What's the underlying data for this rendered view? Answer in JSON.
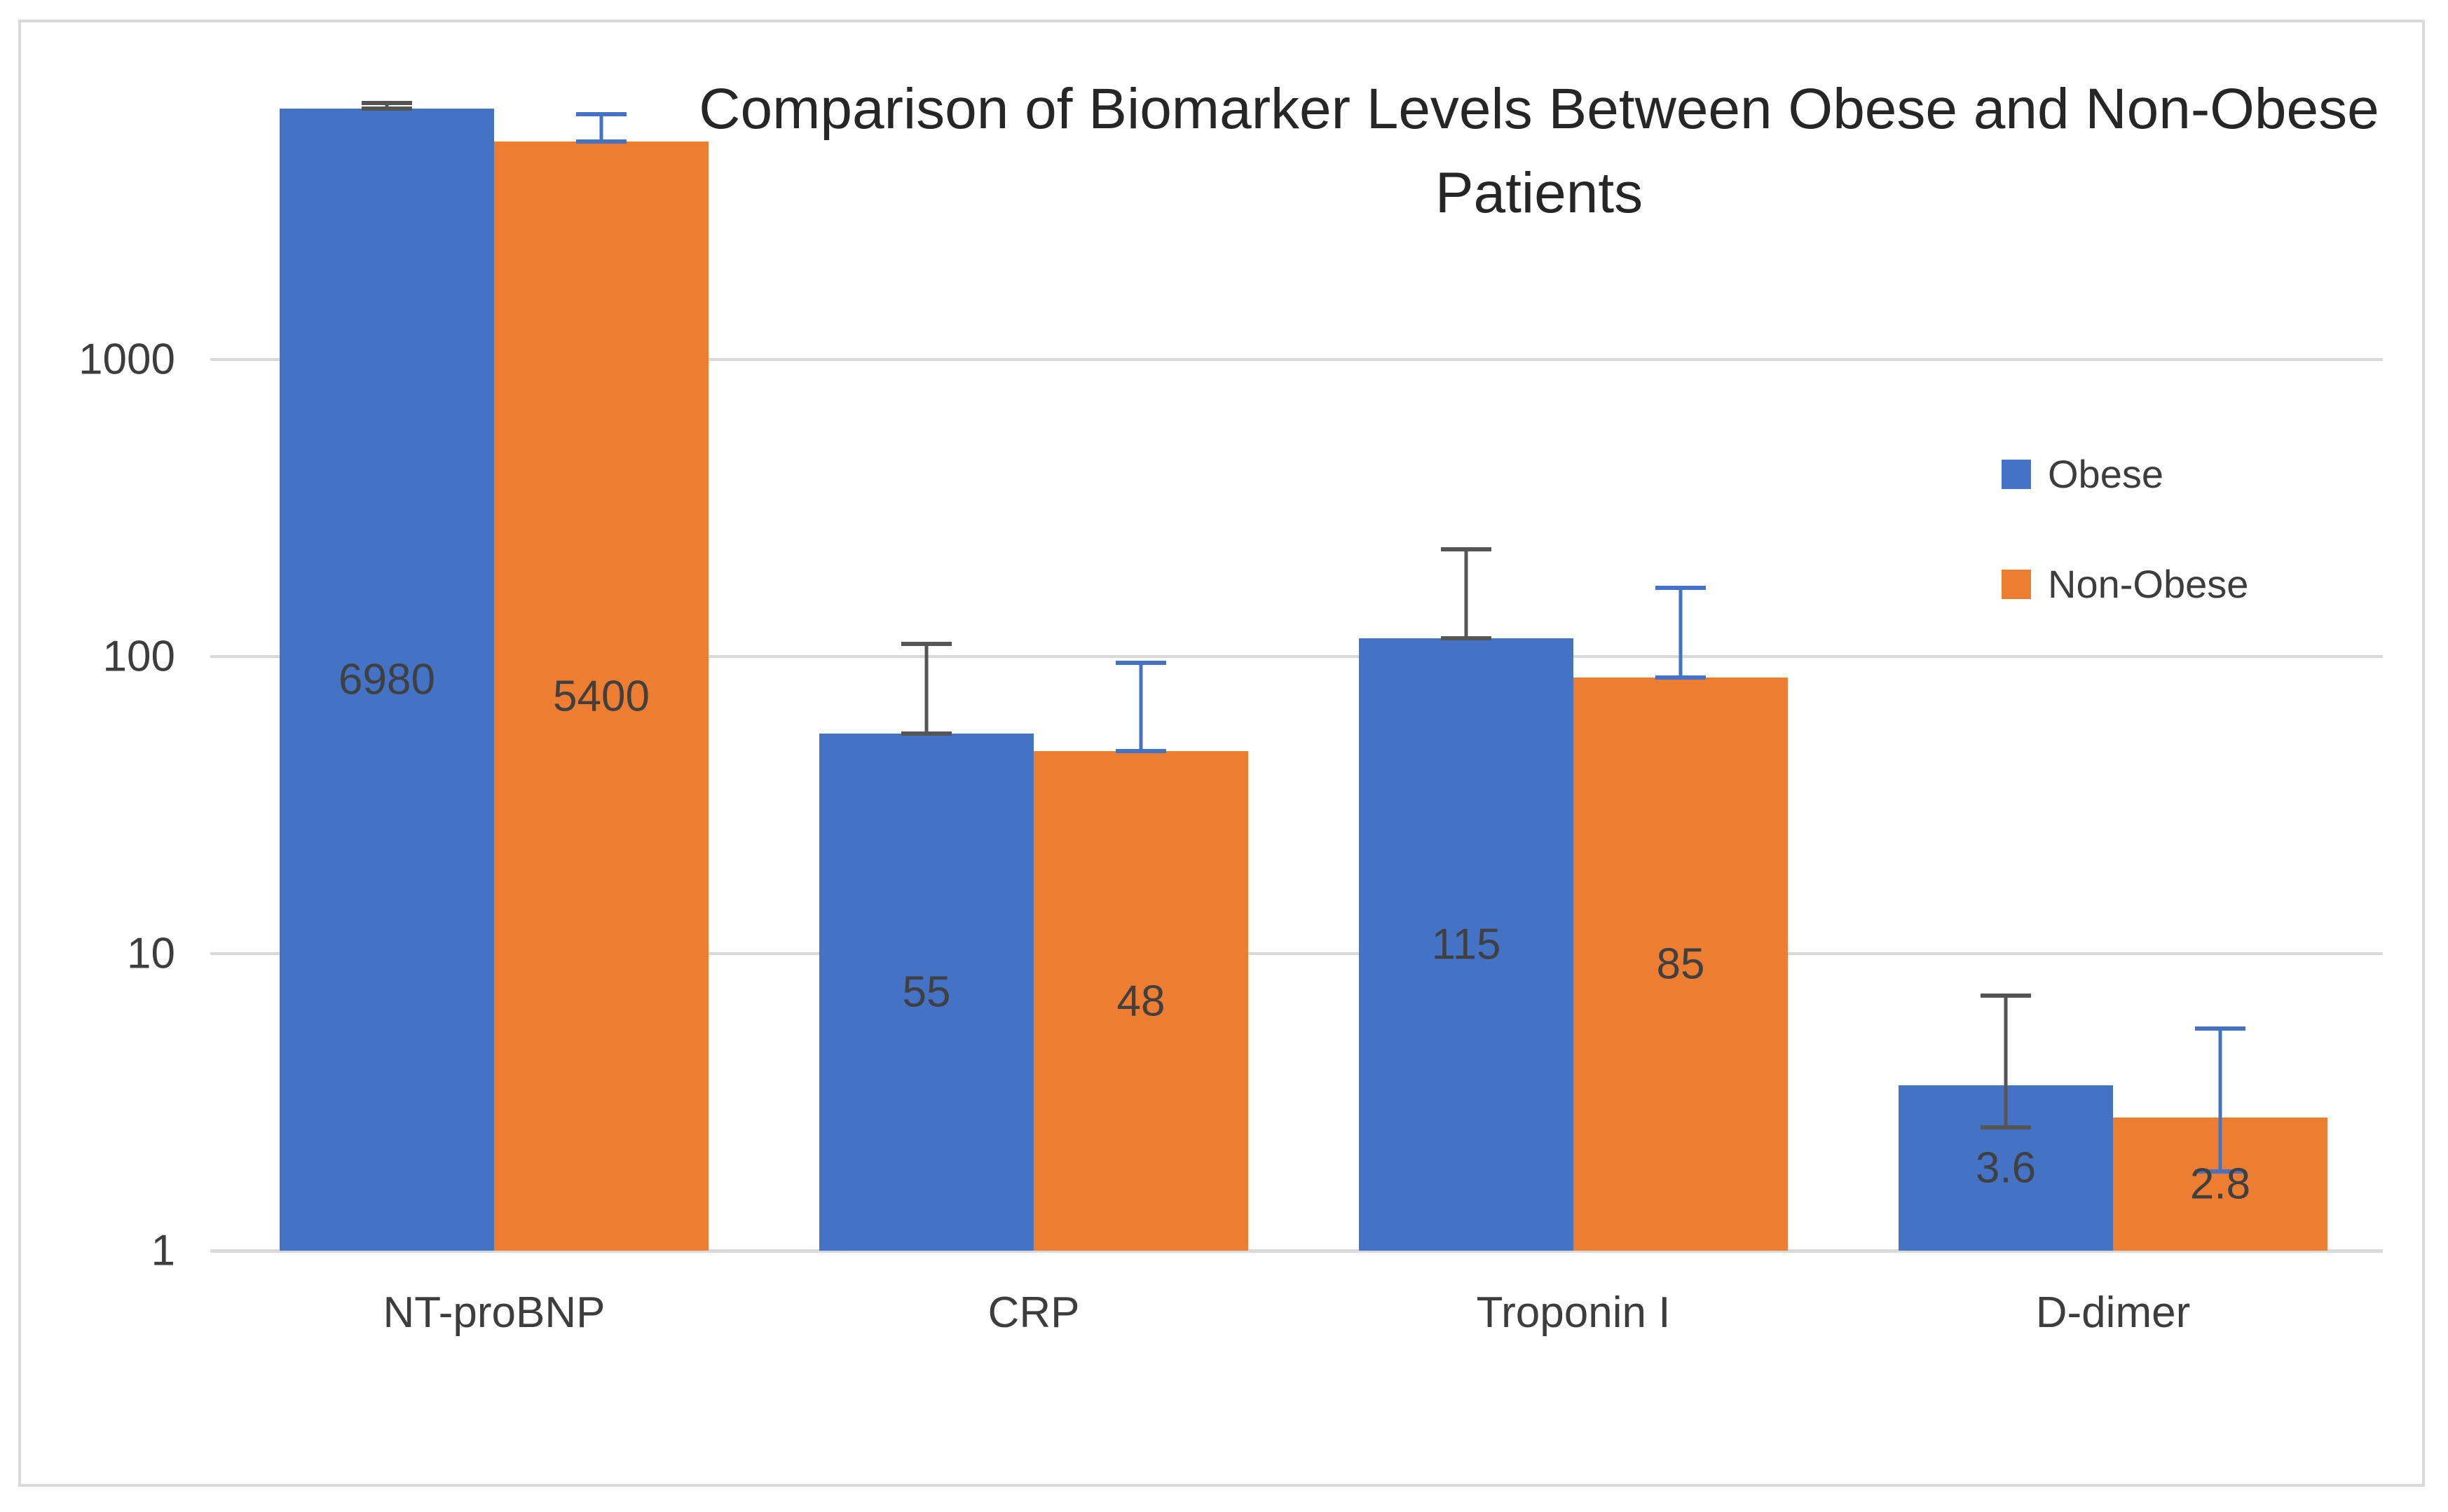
{
  "chart_data": {
    "type": "bar",
    "title": "Comparison of Biomarker Levels Between Obese and Non-Obese Patients",
    "categories": [
      "NT-proBNP",
      "CRP",
      "Troponin I",
      "D-dimer"
    ],
    "series": [
      {
        "name": "Obese",
        "color": "#4472C4",
        "error_bar_color": "#555555",
        "values": [
          6980,
          55,
          115,
          3.6
        ],
        "value_labels": [
          "6980",
          "55",
          "115",
          "3.6"
        ],
        "error_low": [
          6980,
          55,
          115,
          2.6
        ],
        "error_high": [
          7300,
          110,
          230,
          7.2
        ]
      },
      {
        "name": "Non-Obese",
        "color": "#ED7D31",
        "error_bar_color": "#4472C4",
        "values": [
          5400,
          48,
          85,
          2.8
        ],
        "value_labels": [
          "5400",
          "48",
          "85",
          "2.8"
        ],
        "error_low": [
          5400,
          48,
          85,
          1.85
        ],
        "error_high": [
          6700,
          95,
          170,
          5.6
        ]
      }
    ],
    "y_axis": {
      "scale": "log",
      "min": 1,
      "max": 10000,
      "ticks": [
        1,
        10,
        100,
        1000
      ],
      "tick_labels": [
        "1",
        "10",
        "100",
        "1000"
      ]
    },
    "grid": true,
    "gridline_color": "#D9D9D9",
    "axis_line_color": "#D9D9D9",
    "text_color": "#3D3D3D",
    "title_color": "#262626",
    "data_label_color": "#404040",
    "legend_position": "right",
    "legend": [
      "Obese",
      "Non-Obese"
    ]
  }
}
